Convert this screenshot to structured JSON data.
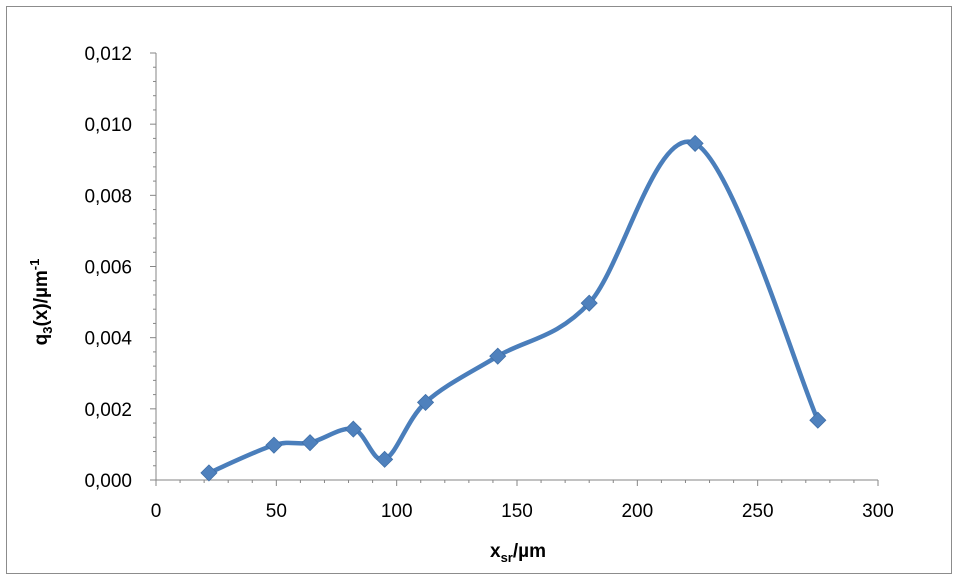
{
  "chart_data": {
    "type": "line",
    "smooth": true,
    "marker": "diamond",
    "series_color": "#4a7ebb",
    "marker_color": "#4f81bd",
    "xlabel": "x",
    "xlabel_subscript": "sr",
    "xlabel_suffix": "/µm",
    "ylabel": "q",
    "ylabel_subscript": "3",
    "ylabel_suffix": "(x)/µm",
    "ylabel_superscript": "-1",
    "xlim": [
      0,
      300
    ],
    "ylim": [
      0,
      0.012
    ],
    "xticks": [
      0,
      50,
      100,
      150,
      200,
      250,
      300
    ],
    "xtick_labels": [
      "0",
      "50",
      "100",
      "150",
      "200",
      "250",
      "300"
    ],
    "yticks": [
      0,
      0.002,
      0.004,
      0.006,
      0.008,
      0.01,
      0.012
    ],
    "ytick_labels": [
      "0,000",
      "0,002",
      "0,004",
      "0,006",
      "0,008",
      "0,010",
      "0,012"
    ],
    "grid": false,
    "legend": "none",
    "x": [
      22,
      49,
      64,
      82,
      95,
      112,
      142,
      180,
      224,
      275
    ],
    "y": [
      0.0002,
      0.00098,
      0.00105,
      0.00143,
      0.00058,
      0.00218,
      0.00348,
      0.00497,
      0.00946,
      0.00168
    ]
  }
}
